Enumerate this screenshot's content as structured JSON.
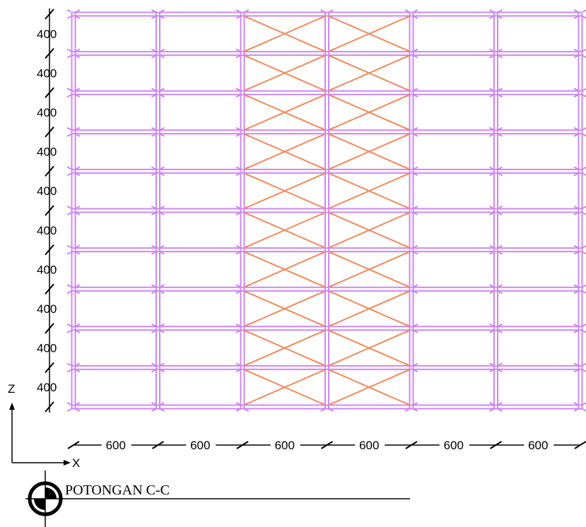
{
  "drawing": {
    "title": "POTONGAN C-C",
    "bays_x": [
      "600",
      "600",
      "600",
      "600",
      "600",
      "600"
    ],
    "stories_z": [
      "400",
      "400",
      "400",
      "400",
      "400",
      "400",
      "400",
      "400",
      "400",
      "400"
    ],
    "braced_bays": [
      2,
      3
    ],
    "axis_labels": {
      "vertical": "Z",
      "horizontal": "X"
    },
    "colors": {
      "frame": "#cc88f0",
      "bracing": "#f08a5d",
      "ink": "#000000"
    }
  }
}
